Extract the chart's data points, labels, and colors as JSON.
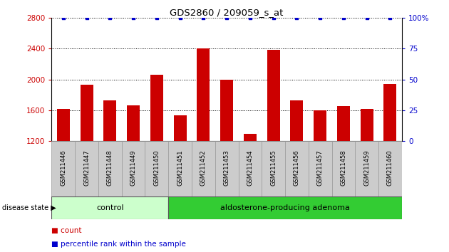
{
  "title": "GDS2860 / 209059_s_at",
  "samples": [
    "GSM211446",
    "GSM211447",
    "GSM211448",
    "GSM211449",
    "GSM211450",
    "GSM211451",
    "GSM211452",
    "GSM211453",
    "GSM211454",
    "GSM211455",
    "GSM211456",
    "GSM211457",
    "GSM211458",
    "GSM211459",
    "GSM211460"
  ],
  "counts": [
    1620,
    1930,
    1730,
    1660,
    2060,
    1530,
    2400,
    2000,
    1290,
    2380,
    1730,
    1600,
    1650,
    1620,
    1940
  ],
  "percentile_ranks": [
    100,
    100,
    100,
    100,
    100,
    100,
    100,
    100,
    100,
    100,
    100,
    100,
    100,
    100,
    100
  ],
  "ylim_left": [
    1200,
    2800
  ],
  "ylim_right": [
    0,
    100
  ],
  "yticks_left": [
    1200,
    1600,
    2000,
    2400,
    2800
  ],
  "yticks_right": [
    0,
    25,
    50,
    75,
    100
  ],
  "bar_color": "#cc0000",
  "dot_color": "#0000cc",
  "control_count": 5,
  "control_label": "control",
  "disease_label": "aldosterone-producing adenoma",
  "control_bg": "#ccffcc",
  "disease_bg": "#33cc33",
  "sample_label_bg": "#cccccc",
  "legend_count_label": "count",
  "legend_percentile_label": "percentile rank within the sample",
  "disease_state_label": "disease state"
}
